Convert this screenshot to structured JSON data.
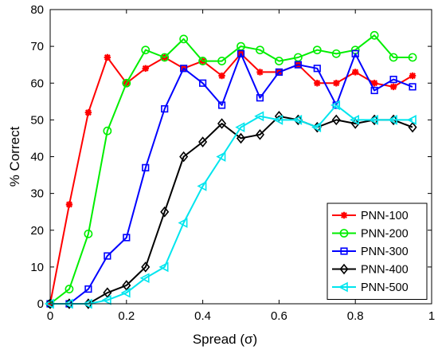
{
  "chart_data": {
    "type": "line",
    "title": "",
    "xlabel": "Spread (σ)",
    "ylabel": "% Correct",
    "xlim": [
      0,
      1
    ],
    "ylim": [
      0,
      80
    ],
    "xticks": [
      0,
      0.2,
      0.4,
      0.6,
      0.8,
      1
    ],
    "yticks": [
      0,
      10,
      20,
      30,
      40,
      50,
      60,
      70,
      80
    ],
    "xtick_labels": [
      "0",
      "0.2",
      "0.4",
      "0.6",
      "0.8",
      "1"
    ],
    "ytick_labels": [
      "0",
      "10",
      "20",
      "30",
      "40",
      "50",
      "60",
      "70",
      "80"
    ],
    "grid": false,
    "legend_position": "bottom-right",
    "x": [
      0,
      0.05,
      0.1,
      0.15,
      0.2,
      0.25,
      0.3,
      0.35,
      0.4,
      0.45,
      0.5,
      0.55,
      0.6,
      0.65,
      0.7,
      0.75,
      0.8,
      0.85,
      0.9,
      0.95
    ],
    "series": [
      {
        "name": "PNN-100",
        "color": "#ff0000",
        "marker": "asterisk",
        "values": [
          0,
          27,
          52,
          67,
          60,
          64,
          67,
          64,
          66,
          62,
          68,
          63,
          63,
          65,
          60,
          60,
          63,
          60,
          59,
          62
        ]
      },
      {
        "name": "PNN-200",
        "color": "#00ee00",
        "marker": "circle",
        "values": [
          0,
          4,
          19,
          47,
          60,
          69,
          67,
          72,
          66,
          66,
          70,
          69,
          66,
          67,
          69,
          68,
          69,
          73,
          67,
          67
        ]
      },
      {
        "name": "PNN-300",
        "color": "#0000ff",
        "marker": "square",
        "values": [
          0,
          0,
          4,
          13,
          18,
          37,
          53,
          64,
          60,
          54,
          68,
          56,
          63,
          65,
          64,
          54,
          68,
          58,
          61,
          59
        ]
      },
      {
        "name": "PNN-400",
        "color": "#000000",
        "marker": "diamond",
        "values": [
          0,
          0,
          0,
          3,
          5,
          10,
          25,
          40,
          44,
          49,
          45,
          46,
          51,
          50,
          48,
          50,
          49,
          50,
          50,
          48
        ]
      },
      {
        "name": "PNN-500",
        "color": "#00e5ee",
        "marker": "triangle-left",
        "values": [
          0,
          0,
          0,
          1,
          3,
          7,
          10,
          22,
          32,
          40,
          48,
          51,
          50,
          50,
          48,
          54,
          50,
          50,
          50,
          50
        ]
      }
    ]
  }
}
